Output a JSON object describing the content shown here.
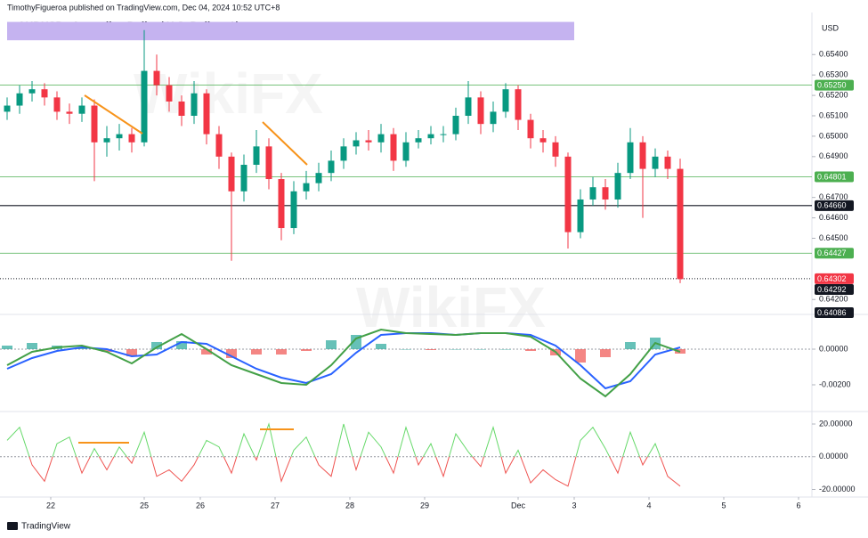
{
  "header": {
    "publisher": "TimothyFigueroa published on TradingView.com, Dec 04, 2024 10:52 UTC+8",
    "title": "AUDUSD . Australian Dollar / U.S. Dollar . 1h",
    "currency": "USD",
    "watermark": "WikiFX"
  },
  "footer": {
    "brand": "TradingView"
  },
  "chart_data": [
    {
      "type": "candlestick",
      "up_color": "#089981",
      "down_color": "#f23645",
      "x": [
        0,
        4,
        8,
        12,
        16,
        20,
        24,
        28,
        32,
        36,
        40,
        44,
        48,
        52,
        56,
        60,
        64,
        68,
        72,
        76,
        80,
        84,
        88,
        92,
        96,
        100,
        104,
        108,
        112,
        116,
        120,
        124,
        128,
        132,
        136,
        140,
        144,
        148,
        152,
        156,
        160,
        164,
        168,
        172,
        176,
        180,
        184,
        188,
        192,
        196,
        200,
        204,
        208,
        212,
        216
      ],
      "open": [
        0.6512,
        0.6515,
        0.6521,
        0.6523,
        0.6519,
        0.6512,
        0.6511,
        0.6515,
        0.6497,
        0.6499,
        0.6501,
        0.6497,
        0.6532,
        0.6525,
        0.6517,
        0.651,
        0.6521,
        0.6501,
        0.649,
        0.6473,
        0.6486,
        0.6495,
        0.6479,
        0.6455,
        0.6473,
        0.6477,
        0.6482,
        0.6488,
        0.6495,
        0.6498,
        0.6497,
        0.6501,
        0.6488,
        0.6497,
        0.6499,
        0.6501,
        0.6501,
        0.651,
        0.6519,
        0.6506,
        0.6512,
        0.6523,
        0.6508,
        0.6499,
        0.6497,
        0.649,
        0.6453,
        0.6469,
        0.6475,
        0.6469,
        0.6482,
        0.6497,
        0.6484,
        0.649,
        0.6484
      ],
      "high": [
        0.6519,
        0.6525,
        0.6527,
        0.6526,
        0.6522,
        0.6516,
        0.6519,
        0.6518,
        0.6505,
        0.6506,
        0.6504,
        0.6552,
        0.654,
        0.6529,
        0.652,
        0.6527,
        0.6523,
        0.6505,
        0.6492,
        0.6491,
        0.6503,
        0.6499,
        0.6482,
        0.6478,
        0.6483,
        0.6487,
        0.6493,
        0.6499,
        0.6502,
        0.6503,
        0.6506,
        0.6504,
        0.6502,
        0.6503,
        0.6505,
        0.6505,
        0.6514,
        0.6527,
        0.6522,
        0.6517,
        0.6526,
        0.6525,
        0.6511,
        0.6503,
        0.65,
        0.6492,
        0.6474,
        0.648,
        0.6479,
        0.6487,
        0.6504,
        0.65,
        0.6494,
        0.6493,
        0.6489
      ],
      "low": [
        0.6508,
        0.6511,
        0.6517,
        0.6515,
        0.6508,
        0.6506,
        0.6507,
        0.6478,
        0.649,
        0.6493,
        0.6492,
        0.6495,
        0.652,
        0.6512,
        0.6505,
        0.6506,
        0.6496,
        0.6484,
        0.6439,
        0.6468,
        0.6482,
        0.6474,
        0.6449,
        0.6452,
        0.6469,
        0.6473,
        0.6478,
        0.6484,
        0.6491,
        0.6493,
        0.6492,
        0.6483,
        0.6485,
        0.6494,
        0.6496,
        0.6497,
        0.6498,
        0.6506,
        0.6501,
        0.6502,
        0.6509,
        0.6503,
        0.6494,
        0.6492,
        0.6485,
        0.6445,
        0.645,
        0.6466,
        0.6464,
        0.6465,
        0.6479,
        0.646,
        0.648,
        0.6479,
        0.6428
      ],
      "close": [
        0.6515,
        0.6521,
        0.6523,
        0.6519,
        0.6512,
        0.6511,
        0.6515,
        0.6497,
        0.6499,
        0.6501,
        0.6497,
        0.6532,
        0.6525,
        0.6517,
        0.651,
        0.6521,
        0.6501,
        0.649,
        0.6473,
        0.6486,
        0.6495,
        0.6479,
        0.6455,
        0.6473,
        0.6477,
        0.6482,
        0.6488,
        0.6495,
        0.6498,
        0.6497,
        0.6501,
        0.6488,
        0.6497,
        0.6499,
        0.6501,
        0.6501,
        0.651,
        0.6519,
        0.6506,
        0.6512,
        0.6523,
        0.6508,
        0.6499,
        0.6497,
        0.649,
        0.6453,
        0.6469,
        0.6475,
        0.6469,
        0.6482,
        0.6497,
        0.6484,
        0.649,
        0.6484,
        0.643
      ],
      "xlim": [
        0,
        258
      ],
      "ylim": [
        0.6414,
        0.6558
      ],
      "yticks": [
        {
          "value": 0.654,
          "label": "0.65400"
        },
        {
          "value": 0.653,
          "label": "0.65300"
        },
        {
          "value": 0.652,
          "label": "0.65200"
        },
        {
          "value": 0.651,
          "label": "0.65100"
        },
        {
          "value": 0.65,
          "label": "0.65000"
        },
        {
          "value": 0.649,
          "label": "0.64900"
        },
        {
          "value": 0.647,
          "label": "0.64700"
        },
        {
          "value": 0.646,
          "label": "0.64600"
        },
        {
          "value": 0.645,
          "label": "0.64500"
        },
        {
          "value": 0.642,
          "label": "0.64200"
        }
      ],
      "zone": {
        "from": 0.6547,
        "to": 0.6556,
        "color": "#c5b3f0"
      },
      "levels": [
        {
          "value": 0.6525,
          "label": "0.65250",
          "color": "#4caf50"
        },
        {
          "value": 0.64801,
          "label": "0.64801",
          "color": "#4caf50"
        },
        {
          "value": 0.6466,
          "label": "0.64660",
          "color": "#131722"
        },
        {
          "value": 0.64427,
          "label": "0.64427",
          "color": "#4caf50"
        }
      ],
      "current": {
        "value": 0.64302,
        "label": "0.64302",
        "color": "#f23645"
      },
      "extra_labels": [
        "0.64292",
        "0.64086"
      ]
    },
    {
      "type": "macd",
      "macd_color": "#43a047",
      "signal_color": "#2962ff",
      "hist_up": "#26a69a",
      "hist_down": "#ef5350",
      "x": [
        0,
        8,
        16,
        24,
        32,
        40,
        48,
        56,
        64,
        72,
        80,
        88,
        96,
        104,
        112,
        120,
        128,
        136,
        144,
        152,
        160,
        168,
        176,
        184,
        192,
        200,
        208,
        216
      ],
      "macd": [
        -0.0009,
        -0.00015,
        0.0001,
        0.0002,
        -0.00015,
        -0.0008,
        0.0001,
        0.00085,
        0,
        -0.0009,
        -0.0014,
        -0.0019,
        -0.002,
        -0.0009,
        0.0006,
        0.0011,
        0.0009,
        0.00085,
        0.0008,
        0.0009,
        0.0009,
        0.0007,
        -0.00015,
        -0.00165,
        -0.00265,
        -0.0014,
        0.00035,
        -0.00015
      ],
      "signal": [
        -0.0011,
        -0.0005,
        -0.0001,
        0.0001,
        0,
        -0.0004,
        -0.0003,
        0.0004,
        0.0003,
        -0.0004,
        -0.0011,
        -0.0016,
        -0.0019,
        -0.0014,
        -0.0002,
        0.0008,
        0.0009,
        0.0009,
        0.0008,
        0.0009,
        0.0009,
        0.0008,
        0.0002,
        -0.0009,
        -0.0022,
        -0.0018,
        -0.0003,
        0.0001
      ],
      "histogram": [
        0.0002,
        0.00035,
        0.0002,
        0.0001,
        -0.00015,
        -0.0004,
        0.0004,
        0.00045,
        -0.0003,
        -0.0005,
        -0.0003,
        -0.0003,
        -0.0001,
        0.0005,
        0.0008,
        0.0003,
        0,
        -5e-05,
        0,
        0,
        0,
        -0.0001,
        -0.00035,
        -0.00075,
        -0.00045,
        0.0004,
        0.00065,
        -0.00025
      ],
      "xlim": [
        0,
        258
      ],
      "ylim": [
        -0.0034,
        0.00185
      ],
      "yticks": [
        {
          "value": 0,
          "label": "0.00000"
        },
        {
          "value": -0.002,
          "label": "-0.00200"
        }
      ]
    },
    {
      "type": "oscillator",
      "up_color": "#66d96a",
      "down_color": "#ef5350",
      "x": [
        0,
        4,
        8,
        12,
        16,
        20,
        24,
        28,
        32,
        36,
        40,
        44,
        48,
        52,
        56,
        60,
        64,
        68,
        72,
        76,
        80,
        84,
        88,
        92,
        96,
        100,
        104,
        108,
        112,
        116,
        120,
        124,
        128,
        132,
        136,
        140,
        144,
        148,
        152,
        156,
        160,
        164,
        168,
        172,
        176,
        180,
        184,
        188,
        192,
        196,
        200,
        204,
        208,
        212,
        216
      ],
      "values": [
        10,
        18,
        -5,
        -15,
        8,
        12,
        -10,
        5,
        -8,
        6,
        -4,
        15,
        -12,
        -8,
        -15,
        -5,
        10,
        6,
        -10,
        14,
        -2,
        20,
        -15,
        4,
        12,
        -5,
        -12,
        20,
        -8,
        15,
        6,
        -10,
        18,
        -5,
        8,
        -12,
        14,
        3,
        -6,
        18,
        -10,
        4,
        -16,
        -8,
        -14,
        -18,
        10,
        18,
        5,
        -10,
        15,
        -5,
        8,
        -12,
        -18
      ],
      "xlim": [
        0,
        258
      ],
      "ylim": [
        -23,
        26
      ],
      "yticks": [
        {
          "value": 20,
          "label": "20.00000"
        },
        {
          "value": 0,
          "label": "0.00000"
        },
        {
          "value": -20,
          "label": "-20.00000"
        }
      ],
      "xticks": [
        {
          "value": 14,
          "label": "22"
        },
        {
          "value": 44,
          "label": "25"
        },
        {
          "value": 62,
          "label": "26"
        },
        {
          "value": 86,
          "label": "27"
        },
        {
          "value": 110,
          "label": "28"
        },
        {
          "value": 134,
          "label": "29"
        },
        {
          "value": 164,
          "label": "Dec"
        },
        {
          "value": 182,
          "label": "3"
        },
        {
          "value": 206,
          "label": "4"
        },
        {
          "value": 230,
          "label": "5"
        },
        {
          "value": 254,
          "label": "6"
        }
      ]
    }
  ]
}
